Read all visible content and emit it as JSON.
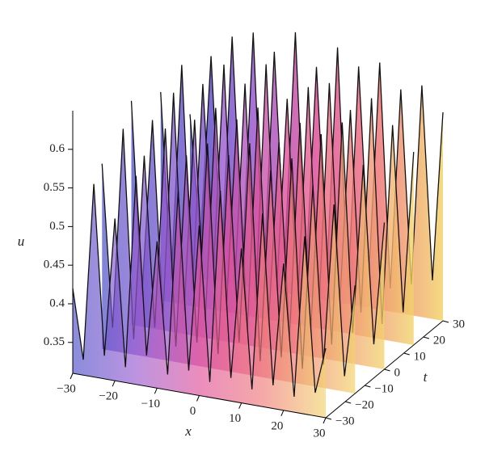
{
  "chart_data": {
    "type": "surface",
    "x_label": "x",
    "t_label": "t",
    "z_label": "u",
    "xlim": [
      -30,
      30
    ],
    "tlim": [
      -30,
      30
    ],
    "zlim": [
      0.31,
      0.65
    ],
    "xticks": [
      {
        "value": -30,
        "label": "−30"
      },
      {
        "value": -20,
        "label": "−20"
      },
      {
        "value": -10,
        "label": "−10"
      },
      0,
      10,
      20,
      30
    ],
    "tticks": [
      30,
      20,
      10,
      0,
      {
        "value": -10,
        "label": "−10"
      },
      {
        "value": -20,
        "label": "−20"
      },
      {
        "value": -30,
        "label": "−30"
      }
    ],
    "zticks": [
      0.35,
      0.4,
      0.45,
      0.5,
      0.55,
      0.6
    ],
    "colormap": [
      "#4b4fc8",
      "#9a5ad0",
      "#e0509a",
      "#f07a7a",
      "#f2d46a"
    ],
    "x": [
      -30,
      -27.5,
      -25,
      -22.5,
      -20,
      -17.5,
      -15,
      -12.5,
      -10,
      -7.5,
      -5,
      -2.5,
      0,
      2.5,
      5,
      7.5,
      10,
      12.5,
      15,
      17.5,
      20,
      22.5,
      25,
      27.5,
      30
    ],
    "t": [
      30,
      15,
      0,
      -15,
      -30
    ],
    "z": [
      [
        0.52,
        0.36,
        0.6,
        0.34,
        0.63,
        0.35,
        0.64,
        0.33,
        0.62,
        0.36,
        0.65,
        0.34,
        0.61,
        0.35,
        0.64,
        0.33,
        0.62,
        0.36,
        0.63,
        0.34,
        0.6,
        0.35,
        0.61,
        0.36,
        0.58
      ],
      [
        0.58,
        0.34,
        0.62,
        0.33,
        0.6,
        0.36,
        0.63,
        0.34,
        0.61,
        0.33,
        0.64,
        0.35,
        0.6,
        0.34,
        0.62,
        0.33,
        0.63,
        0.35,
        0.6,
        0.34,
        0.62,
        0.33,
        0.59,
        0.35,
        0.56
      ],
      [
        0.6,
        0.35,
        0.58,
        0.33,
        0.62,
        0.34,
        0.59,
        0.33,
        0.61,
        0.35,
        0.6,
        0.33,
        0.62,
        0.34,
        0.58,
        0.33,
        0.61,
        0.34,
        0.6,
        0.33,
        0.62,
        0.35,
        0.57,
        0.34,
        0.5
      ],
      [
        0.55,
        0.34,
        0.6,
        0.33,
        0.57,
        0.35,
        0.61,
        0.33,
        0.58,
        0.34,
        0.6,
        0.33,
        0.59,
        0.35,
        0.61,
        0.33,
        0.58,
        0.34,
        0.6,
        0.33,
        0.57,
        0.34,
        0.55,
        0.33,
        0.45
      ],
      [
        0.42,
        0.33,
        0.56,
        0.34,
        0.52,
        0.33,
        0.58,
        0.35,
        0.5,
        0.33,
        0.57,
        0.34,
        0.53,
        0.33,
        0.58,
        0.34,
        0.51,
        0.33,
        0.56,
        0.34,
        0.5,
        0.33,
        0.54,
        0.34,
        0.4
      ]
    ]
  }
}
